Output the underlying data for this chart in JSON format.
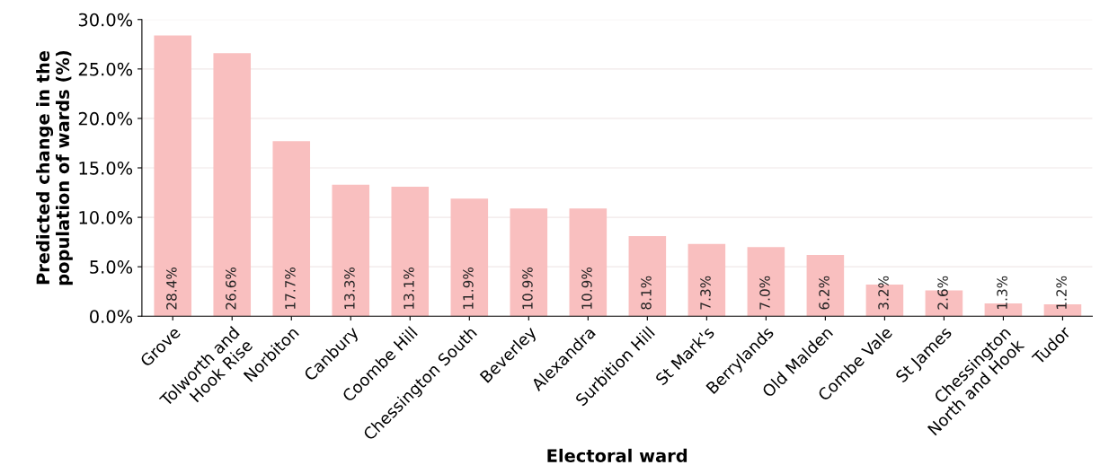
{
  "chart_data": {
    "type": "bar",
    "xlabel": "Electoral ward",
    "ylabel": "Predicted change in the\npopulation of wards (%)",
    "categories": [
      "Grove",
      "Tolworth and\nHook Rise",
      "Norbiton",
      "Canbury",
      "Coombe Hill",
      "Chessington South",
      "Beverley",
      "Alexandra",
      "Surbition Hill",
      "St Mark's",
      "Berrylands",
      "Old Malden",
      "Combe Vale",
      "St James",
      "Chessington\nNorth and Hook",
      "Tudor"
    ],
    "values": [
      28.4,
      26.6,
      17.7,
      13.3,
      13.1,
      11.9,
      10.9,
      10.9,
      8.1,
      7.3,
      7.0,
      6.2,
      3.2,
      2.6,
      1.3,
      1.2
    ],
    "value_labels": [
      "28.4%",
      "26.6%",
      "17.7%",
      "13.3%",
      "13.1%",
      "11.9%",
      "10.9%",
      "10.9%",
      "8.1%",
      "7.3%",
      "7.0%",
      "6.2%",
      "3.2%",
      "2.6%",
      "1.3%",
      "1.2%"
    ],
    "color": "#f9bfbf",
    "ylim": [
      0,
      30
    ],
    "yticks": [
      {
        "value": 0,
        "label": "0.0%"
      },
      {
        "value": 5,
        "label": "5.0%"
      },
      {
        "value": 10,
        "label": "10.0%"
      },
      {
        "value": 15,
        "label": "15.0%"
      },
      {
        "value": 20,
        "label": "20.0%"
      },
      {
        "value": 25,
        "label": "25.0%"
      },
      {
        "value": 30,
        "label": "30.0%"
      }
    ],
    "grid": "y"
  }
}
